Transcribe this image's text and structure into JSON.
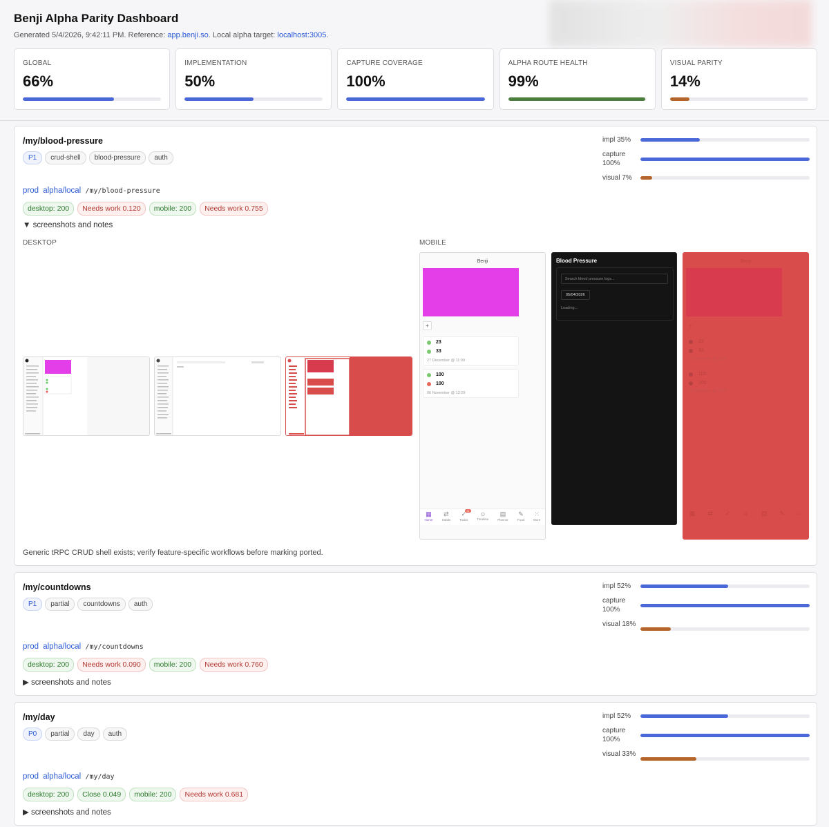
{
  "header": {
    "title": "Benji Alpha Parity Dashboard",
    "generated_prefix": "Generated 5/4/2026, 9:42:11 PM. Reference: ",
    "reference_link": "app.benji.so",
    "local_prefix": ". Local alpha target: ",
    "local_link": "localhost:3005",
    "suffix": "."
  },
  "metrics": [
    {
      "label": "GLOBAL",
      "value": "66%",
      "pct": 66,
      "color": "#4a68d8"
    },
    {
      "label": "IMPLEMENTATION",
      "value": "50%",
      "pct": 50,
      "color": "#4a68d8"
    },
    {
      "label": "CAPTURE COVERAGE",
      "value": "100%",
      "pct": 100,
      "color": "#4a68d8"
    },
    {
      "label": "ALPHA ROUTE HEALTH",
      "value": "99%",
      "pct": 99,
      "color": "#4a7d3e"
    },
    {
      "label": "VISUAL PARITY",
      "value": "14%",
      "pct": 14,
      "color": "#b5652a"
    }
  ],
  "colors": {
    "impl": "#4a68d8",
    "capture": "#4a68d8",
    "visual": "#b5652a"
  },
  "routes": [
    {
      "title": "/my/blood-pressure",
      "tags": [
        "P1",
        "crud-shell",
        "blood-pressure",
        "auth"
      ],
      "link_prod": "prod",
      "link_alpha": "alpha/local",
      "path": "/my/blood-pressure",
      "pills": [
        {
          "text": "desktop: 200",
          "kind": "ok"
        },
        {
          "text": "Needs work 0.120",
          "kind": "bad"
        },
        {
          "text": "mobile: 200",
          "kind": "ok"
        },
        {
          "text": "Needs work 0.755",
          "kind": "bad"
        }
      ],
      "summary_open": "▼ screenshots and notes",
      "stats": [
        {
          "label": "impl 35%",
          "pct": 35,
          "key": "impl"
        },
        {
          "label": "capture 100%",
          "pct": 100,
          "key": "capture"
        },
        {
          "label": "visual 7%",
          "pct": 7,
          "key": "visual"
        }
      ],
      "desktop_label": "DESKTOP",
      "mobile_label": "MOBILE",
      "mobile": {
        "app_title": "Benji",
        "add_symbol": "+",
        "entries": [
          {
            "a": "23",
            "b": "33",
            "date": "27 December @ 11:09"
          },
          {
            "a": "100",
            "b": "100",
            "date": "06 November @ 12:29"
          }
        ],
        "nav": [
          "Home",
          "Habits",
          "Todos",
          "Timeline",
          "Planner",
          "Food",
          "More"
        ],
        "todo_badge": "21",
        "alpha_title": "Blood Pressure",
        "alpha_search": "Search blood pressure logs...",
        "alpha_date": "05/04/2026",
        "alpha_loading": "Loading..."
      },
      "note": "Generic tRPC CRUD shell exists; verify feature-specific workflows before marking ported."
    },
    {
      "title": "/my/countdowns",
      "tags": [
        "P1",
        "partial",
        "countdowns",
        "auth"
      ],
      "link_prod": "prod",
      "link_alpha": "alpha/local",
      "path": "/my/countdowns",
      "pills": [
        {
          "text": "desktop: 200",
          "kind": "ok"
        },
        {
          "text": "Needs work 0.090",
          "kind": "bad"
        },
        {
          "text": "mobile: 200",
          "kind": "ok"
        },
        {
          "text": "Needs work 0.760",
          "kind": "bad"
        }
      ],
      "summary_closed": "▶ screenshots and notes",
      "stats": [
        {
          "label": "impl 52%",
          "pct": 52,
          "key": "impl"
        },
        {
          "label": "capture 100%",
          "pct": 100,
          "key": "capture"
        },
        {
          "label": "visual 18%",
          "pct": 18,
          "key": "visual"
        }
      ]
    },
    {
      "title": "/my/day",
      "tags": [
        "P0",
        "partial",
        "day",
        "auth"
      ],
      "link_prod": "prod",
      "link_alpha": "alpha/local",
      "path": "/my/day",
      "pills": [
        {
          "text": "desktop: 200",
          "kind": "ok"
        },
        {
          "text": "Close 0.049",
          "kind": "ok"
        },
        {
          "text": "mobile: 200",
          "kind": "ok"
        },
        {
          "text": "Needs work 0.681",
          "kind": "bad"
        }
      ],
      "summary_closed": "▶ screenshots and notes",
      "stats": [
        {
          "label": "impl 52%",
          "pct": 52,
          "key": "impl"
        },
        {
          "label": "capture 100%",
          "pct": 100,
          "key": "capture"
        },
        {
          "label": "visual 33%",
          "pct": 33,
          "key": "visual"
        }
      ]
    }
  ]
}
